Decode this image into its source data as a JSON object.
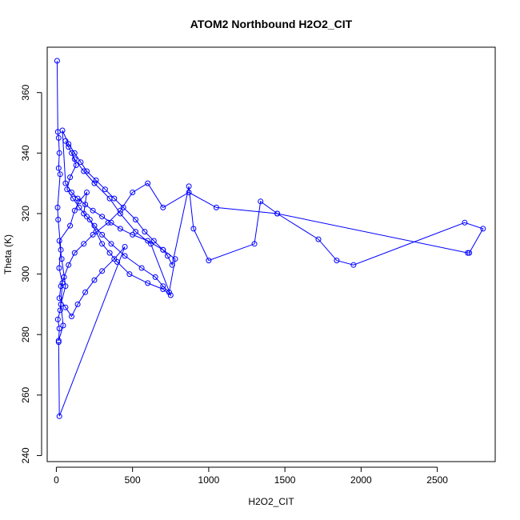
{
  "chart_data": {
    "type": "scatter",
    "title": "ATOM2 Northbound H2O2_CIT",
    "xlabel": "H2O2_CIT",
    "ylabel": "Theta (K)",
    "xlim": [
      -60,
      2880
    ],
    "ylim": [
      238,
      375
    ],
    "xticks": [
      0,
      500,
      1000,
      1500,
      2000,
      2500
    ],
    "yticks": [
      240,
      260,
      280,
      300,
      320,
      340,
      360
    ],
    "color": "#0000ff",
    "series": [
      {
        "name": "",
        "x": [
          5,
          10,
          15,
          20,
          15,
          25,
          8,
          12,
          30,
          18,
          40,
          25,
          10,
          20,
          15,
          45,
          30,
          60,
          35,
          20,
          90,
          120,
          150,
          200,
          180,
          220,
          260,
          300,
          350,
          400,
          480,
          600,
          700,
          750,
          620,
          520,
          420,
          350,
          250,
          180,
          120,
          80,
          60,
          100,
          130,
          90,
          70,
          110,
          150,
          200,
          250,
          300,
          360,
          450,
          560,
          650,
          700,
          740,
          780,
          700,
          600,
          500,
          420,
          360,
          300,
          240,
          190,
          140,
          100,
          60,
          40,
          80,
          120,
          160,
          200,
          260,
          320,
          380,
          440,
          520,
          580,
          640,
          700,
          730,
          760,
          870,
          900,
          1000,
          1300,
          1340,
          1450,
          1720,
          1840,
          1950,
          2680,
          2800,
          2710,
          2700,
          1450,
          1050,
          870,
          700,
          600,
          500,
          420,
          340,
          240,
          180,
          120,
          80,
          50,
          30,
          20,
          60,
          100,
          140,
          190,
          250,
          300,
          380,
          450,
          20,
          15
        ],
        "y": [
          370.5,
          347,
          345,
          340,
          335,
          333,
          322,
          318,
          308,
          302,
          297,
          288,
          285,
          282,
          278,
          283,
          290,
          296,
          305,
          311,
          316,
          321,
          324,
          327,
          320,
          318,
          314,
          310,
          307,
          304,
          300,
          297,
          295,
          293,
          310,
          314,
          320,
          325,
          330,
          334,
          338,
          342,
          344,
          340,
          336,
          332,
          328,
          325,
          322,
          319,
          316,
          313,
          310,
          306,
          302,
          299,
          296,
          294,
          305,
          308,
          311,
          313,
          315,
          317,
          319,
          321,
          323,
          325,
          327,
          330,
          347.5,
          343,
          340,
          337,
          334,
          331,
          328,
          325,
          322,
          318,
          314,
          311,
          308,
          306,
          303,
          329,
          315,
          304.5,
          310,
          324,
          320,
          311.5,
          304.5,
          303,
          317,
          315,
          307,
          307,
          320,
          322,
          327,
          322,
          330,
          327,
          321,
          317,
          313,
          310,
          307,
          303,
          299,
          296,
          292,
          289,
          286,
          290,
          294,
          298,
          301,
          305,
          309,
          253,
          277.5
        ]
      }
    ]
  }
}
